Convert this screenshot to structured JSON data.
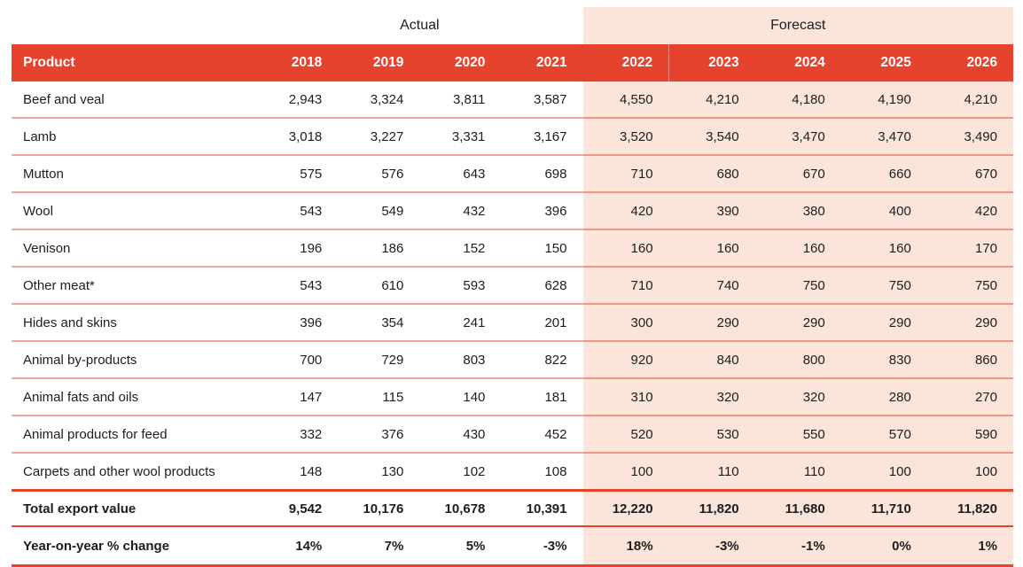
{
  "colors": {
    "header_red": "#e6432f",
    "forecast_bg": "#fbe5db",
    "row_line": "#f0a49b",
    "forecast_row_line": "#ee9683",
    "text": "#1d1d1b"
  },
  "chart_data": {
    "type": "table",
    "group_headers": {
      "actual": "Actual",
      "forecast": "Forecast"
    },
    "columns": {
      "product": "Product",
      "years": [
        "2018",
        "2019",
        "2020",
        "2021",
        "2022",
        "2023",
        "2024",
        "2025",
        "2026"
      ],
      "actual_year_count": 4,
      "forecast_year_count": 5
    },
    "rows": [
      {
        "product": "Beef and veal",
        "values": [
          "2,943",
          "3,324",
          "3,811",
          "3,587",
          "4,550",
          "4,210",
          "4,180",
          "4,190",
          "4,210"
        ]
      },
      {
        "product": "Lamb",
        "values": [
          "3,018",
          "3,227",
          "3,331",
          "3,167",
          "3,520",
          "3,540",
          "3,470",
          "3,470",
          "3,490"
        ]
      },
      {
        "product": "Mutton",
        "values": [
          "575",
          "576",
          "643",
          "698",
          "710",
          "680",
          "670",
          "660",
          "670"
        ]
      },
      {
        "product": "Wool",
        "values": [
          "543",
          "549",
          "432",
          "396",
          "420",
          "390",
          "380",
          "400",
          "420"
        ]
      },
      {
        "product": "Venison",
        "values": [
          "196",
          "186",
          "152",
          "150",
          "160",
          "160",
          "160",
          "160",
          "170"
        ]
      },
      {
        "product": "Other meat*",
        "values": [
          "543",
          "610",
          "593",
          "628",
          "710",
          "740",
          "750",
          "750",
          "750"
        ]
      },
      {
        "product": "Hides and skins",
        "values": [
          "396",
          "354",
          "241",
          "201",
          "300",
          "290",
          "290",
          "290",
          "290"
        ]
      },
      {
        "product": "Animal by-products",
        "values": [
          "700",
          "729",
          "803",
          "822",
          "920",
          "840",
          "800",
          "830",
          "860"
        ]
      },
      {
        "product": "Animal fats and oils",
        "values": [
          "147",
          "115",
          "140",
          "181",
          "310",
          "320",
          "320",
          "280",
          "270"
        ]
      },
      {
        "product": "Animal products for feed",
        "values": [
          "332",
          "376",
          "430",
          "452",
          "520",
          "530",
          "550",
          "570",
          "590"
        ]
      },
      {
        "product": "Carpets and other wool products",
        "values": [
          "148",
          "130",
          "102",
          "108",
          "100",
          "110",
          "110",
          "100",
          "100"
        ]
      }
    ],
    "total_row": {
      "product": "Total export value",
      "values": [
        "9,542",
        "10,176",
        "10,678",
        "10,391",
        "12,220",
        "11,820",
        "11,680",
        "11,710",
        "11,820"
      ]
    },
    "yoy_row": {
      "product": "Year-on-year % change",
      "values": [
        "14%",
        "7%",
        "5%",
        "-3%",
        "18%",
        "-3%",
        "-1%",
        "0%",
        "1%"
      ]
    }
  }
}
